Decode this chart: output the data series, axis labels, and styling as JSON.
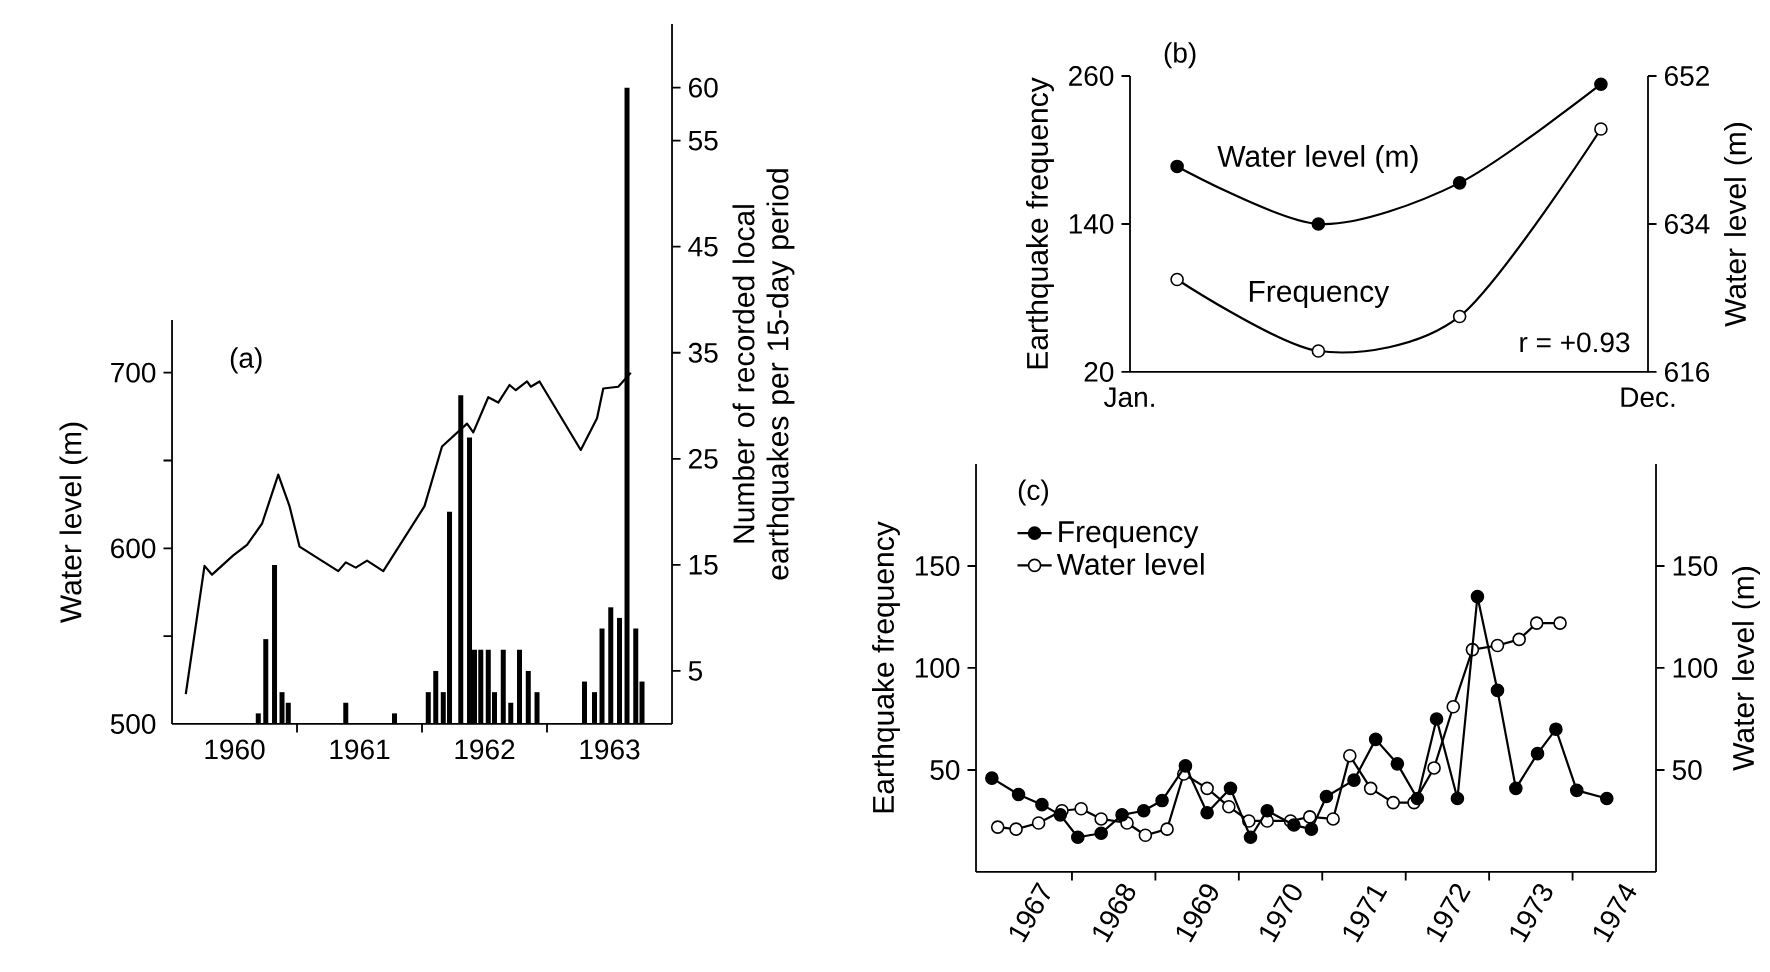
{
  "chart_data": [
    {
      "type": "bar",
      "annotations": [
        "(a)"
      ],
      "ylabel": "Water level (m)",
      "y2label": "Number of recorded local earthquakes per 15-day period",
      "xlim": [
        1960,
        1964
      ],
      "xticks": [
        {
          "value": 1960.5,
          "label": "1960"
        },
        {
          "value": 1961,
          "label": null
        },
        {
          "value": 1961.5,
          "label": "1961"
        },
        {
          "value": 1962,
          "label": null
        },
        {
          "value": 1962.5,
          "label": "1962"
        },
        {
          "value": 1963,
          "label": null
        },
        {
          "value": 1963.5,
          "label": "1963"
        }
      ],
      "ylim": [
        500,
        730
      ],
      "yticks": [
        500,
        {
          "value": 550,
          "label": null
        },
        600,
        {
          "value": 650,
          "label": null
        },
        700
      ],
      "y2lim": [
        0,
        66
      ],
      "y2ticks": [
        5,
        15,
        25,
        35,
        45,
        55,
        60
      ],
      "series": [
        {
          "type": "line",
          "color": "#000000",
          "x": [
            1960.11,
            1960.26,
            1960.32,
            1960.49,
            1960.6,
            1960.72,
            1960.85,
            1960.94,
            1961.02,
            1961.33,
            1961.39,
            1961.47,
            1961.56,
            1961.69,
            1962.02,
            1962.16,
            1962.36,
            1962.41,
            1962.53,
            1962.61,
            1962.7,
            1962.75,
            1962.84,
            1962.87,
            1962.94,
            1963.27,
            1963.4,
            1963.45,
            1963.57,
            1963.67
          ],
          "values": [
            517,
            590,
            585,
            596,
            602,
            614,
            642,
            624,
            601,
            587,
            592,
            589,
            593,
            587,
            624,
            658,
            671,
            666,
            686,
            683,
            693,
            690,
            695,
            692,
            695,
            656,
            674,
            691,
            692,
            700
          ]
        },
        {
          "type": "bar",
          "axis": "y2",
          "color": "#000000",
          "x": [
            1960.69,
            1960.75,
            1960.82,
            1960.88,
            1960.93,
            1961.39,
            1961.78,
            1962.05,
            1962.11,
            1962.17,
            1962.22,
            1962.31,
            1962.38,
            1962.42,
            1962.47,
            1962.53,
            1962.58,
            1962.65,
            1962.71,
            1962.78,
            1962.85,
            1962.92,
            1963.3,
            1963.38,
            1963.44,
            1963.51,
            1963.58,
            1963.64,
            1963.71,
            1963.76
          ],
          "values": [
            1,
            8,
            15,
            3,
            2,
            2,
            1,
            3,
            5,
            3,
            20,
            31,
            27,
            7,
            7,
            7,
            3,
            7,
            2,
            7,
            5,
            3,
            4,
            3,
            9,
            11,
            10,
            60,
            9,
            4
          ]
        }
      ]
    },
    {
      "type": "line",
      "annotations": [
        "(b)",
        "r = +0.93"
      ],
      "ylabel": "Earthquake frequency",
      "y2label": "Water level (m)",
      "categories": [
        "Jan.",
        null,
        null,
        null,
        null,
        null,
        null,
        null,
        null,
        null,
        null,
        "Dec."
      ],
      "ylim": [
        20,
        260
      ],
      "yticks": [
        20,
        140,
        260
      ],
      "y2lim": [
        616,
        652
      ],
      "y2ticks": [
        616,
        634,
        652
      ],
      "series": [
        {
          "name": "Water level (m)",
          "axis": "y2",
          "color": "#000000",
          "marker": "circle",
          "values": [
            null,
            641,
            null,
            null,
            634,
            null,
            null,
            639,
            null,
            null,
            651,
            null
          ]
        },
        {
          "name": "Frequency",
          "color": "#000000",
          "marker": "circle",
          "colors": [
            null,
            "#ffffff",
            null,
            null,
            "#ffffff",
            null,
            null,
            "#ffffff",
            null,
            null,
            "#ffffff",
            null
          ],
          "values": [
            null,
            95,
            null,
            null,
            37,
            null,
            null,
            65,
            null,
            null,
            217,
            null
          ]
        }
      ]
    },
    {
      "type": "line",
      "annotations": [
        "(c)"
      ],
      "ylabel": "Earthquake frequency",
      "y2label": "Water level (m)",
      "legend": "top left",
      "xlim": [
        1966.85,
        1975
      ],
      "xticks": [
        {
          "value": 1967.5,
          "label": "1967"
        },
        {
          "value": 1968,
          "label": null
        },
        {
          "value": 1968.5,
          "label": "1968"
        },
        {
          "value": 1969,
          "label": null
        },
        {
          "value": 1969.5,
          "label": "1969"
        },
        {
          "value": 1970,
          "label": null
        },
        {
          "value": 1970.5,
          "label": "1970"
        },
        {
          "value": 1971,
          "label": null
        },
        {
          "value": 1971.5,
          "label": "1971"
        },
        {
          "value": 1972,
          "label": null
        },
        {
          "value": 1972.5,
          "label": "1972"
        },
        {
          "value": 1973,
          "label": null
        },
        {
          "value": 1973.5,
          "label": "1973"
        },
        {
          "value": 1974,
          "label": null
        },
        {
          "value": 1974.5,
          "label": "1974"
        }
      ],
      "ylim": [
        0,
        200
      ],
      "yticks": [
        50,
        100,
        150
      ],
      "y2lim": [
        0,
        200
      ],
      "y2ticks": [
        50,
        100,
        150
      ],
      "series": [
        {
          "name": "Frequency",
          "color": "#000000",
          "marker": "circle",
          "x": [
            1967.04,
            1967.36,
            1967.64,
            1967.86,
            1968.07,
            1968.35,
            1968.6,
            1968.86,
            1969.08,
            1969.36,
            1969.62,
            1969.9,
            1970.14,
            1970.34,
            1970.66,
            1970.87,
            1971.05,
            1971.38,
            1971.64,
            1971.9,
            1972.14,
            1972.37,
            1972.62,
            1972.86,
            1973.1,
            1973.32,
            1973.58,
            1973.8,
            1974.05,
            1974.41
          ],
          "values": [
            46,
            38,
            33,
            28,
            17,
            19,
            28,
            30,
            35,
            52,
            29,
            41,
            17,
            30,
            23,
            21,
            37,
            45,
            65,
            53,
            36,
            75,
            36,
            135,
            89,
            41,
            58,
            70,
            40,
            36
          ]
        },
        {
          "name": "Water level",
          "axis": "y2",
          "color": "#000000",
          "marker": "circle",
          "colors": [
            "#ffffff",
            "#ffffff",
            "#ffffff",
            "#ffffff",
            "#ffffff",
            "#ffffff",
            "#ffffff",
            "#ffffff",
            "#ffffff",
            "#ffffff",
            "#ffffff",
            "#ffffff",
            "#ffffff",
            "#ffffff",
            "#ffffff",
            "#ffffff",
            "#ffffff",
            "#ffffff",
            "#ffffff",
            "#ffffff",
            "#ffffff",
            "#ffffff",
            "#ffffff",
            "#ffffff",
            "#ffffff",
            "#ffffff",
            "#ffffff",
            "#ffffff"
          ],
          "x": [
            1967.11,
            1967.33,
            1967.6,
            1967.88,
            1968.11,
            1968.35,
            1968.66,
            1968.88,
            1969.14,
            1969.34,
            1969.62,
            1969.88,
            1970.12,
            1970.34,
            1970.62,
            1970.85,
            1971.13,
            1971.33,
            1971.58,
            1971.85,
            1972.1,
            1972.34,
            1972.57,
            1972.8,
            1973.1,
            1973.36,
            1973.57,
            1973.85
          ],
          "values": [
            22,
            21,
            24,
            30,
            31,
            26,
            24,
            18,
            21,
            48,
            41,
            32,
            25,
            25,
            25,
            27,
            26,
            57,
            41,
            34,
            34,
            51,
            81,
            109,
            111,
            114,
            122,
            122
          ]
        }
      ]
    }
  ]
}
